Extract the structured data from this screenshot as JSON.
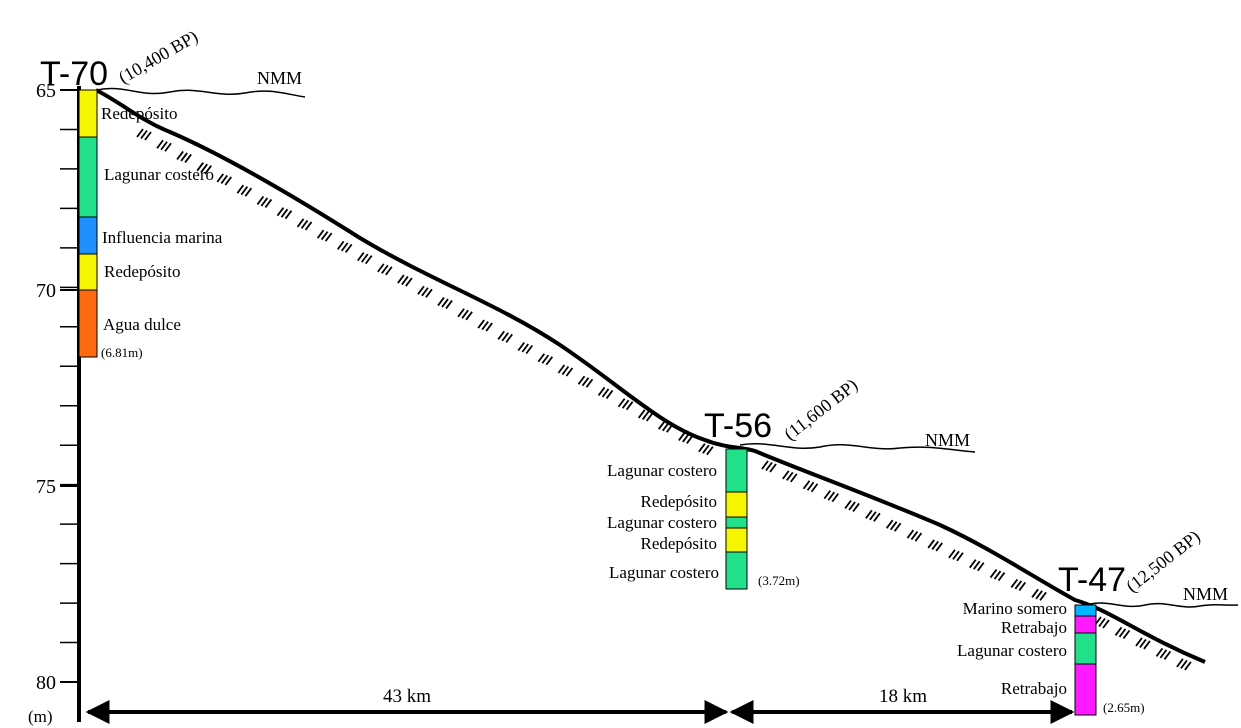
{
  "axis": {
    "unit": "(m)",
    "ticks": [
      "65",
      "70",
      "75",
      "80"
    ]
  },
  "cores": [
    {
      "id": "T-70",
      "age": "(10,400 BP)",
      "sea_level": "NMM",
      "depth": "(6.81m)",
      "layers": [
        {
          "label": "Redepósito",
          "color": "#f5f500"
        },
        {
          "label": "Lagunar costero",
          "color": "#22e08a"
        },
        {
          "label": "Influencia marina",
          "color": "#1e90ff"
        },
        {
          "label": "Redepósito",
          "color": "#f5f500"
        },
        {
          "label": "Agua dulce",
          "color": "#ff6a0f"
        }
      ]
    },
    {
      "id": "T-56",
      "age": "(11,600 BP)",
      "sea_level": "NMM",
      "depth": "(3.72m)",
      "layers": [
        {
          "label": "Lagunar costero",
          "color": "#22e08a"
        },
        {
          "label": "Redepósito",
          "color": "#f5f500"
        },
        {
          "label": "Lagunar costero",
          "color": "#22e08a"
        },
        {
          "label": "Redepósito",
          "color": "#f5f500"
        },
        {
          "label": "Lagunar costero",
          "color": "#22e08a"
        }
      ]
    },
    {
      "id": "T-47",
      "age": "(12,500 BP)",
      "sea_level": "NMM",
      "depth": "(2.65m)",
      "layers": [
        {
          "label": "Marino somero",
          "color": "#00b4ff"
        },
        {
          "label": "Retrabajo",
          "color": "#ff1aff"
        },
        {
          "label": "Lagunar costero",
          "color": "#22e08a"
        },
        {
          "label": "Retrabajo",
          "color": "#ff1aff"
        }
      ]
    }
  ],
  "distances": [
    "43 km",
    "18 km"
  ]
}
